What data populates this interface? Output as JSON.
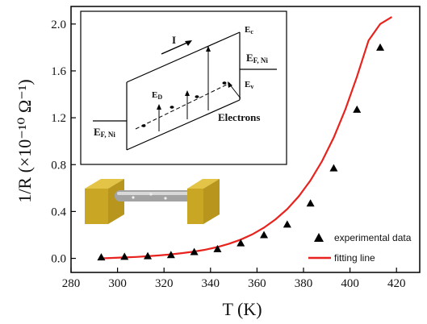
{
  "chart_data": {
    "type": "scatter",
    "title": "",
    "xlabel": "T (K)",
    "ylabel": "1/R (×10⁻¹⁰ Ω⁻¹)",
    "xlim": [
      280,
      430
    ],
    "ylim": [
      -0.12,
      2.15
    ],
    "x_ticks": [
      "280",
      "300",
      "320",
      "340",
      "360",
      "380",
      "400",
      "420"
    ],
    "y_ticks": [
      "0.0",
      "0.4",
      "0.8",
      "1.2",
      "1.6",
      "2.0"
    ],
    "series": [
      {
        "name": "experimental data",
        "marker": "triangle",
        "color": "#000000",
        "x": [
          293,
          303,
          313,
          323,
          333,
          343,
          353,
          363,
          373,
          383,
          393,
          403,
          413
        ],
        "y": [
          0.01,
          0.015,
          0.02,
          0.03,
          0.055,
          0.08,
          0.13,
          0.2,
          0.29,
          0.47,
          0.77,
          1.27,
          1.8
        ]
      },
      {
        "name": "fitting line",
        "style": "line",
        "color": "#e8221c",
        "x": [
          293,
          298,
          303,
          308,
          313,
          318,
          323,
          328,
          333,
          338,
          343,
          348,
          353,
          358,
          363,
          368,
          373,
          378,
          383,
          388,
          393,
          398,
          403,
          408,
          413,
          418
        ],
        "y": [
          0.0,
          0.004,
          0.008,
          0.012,
          0.018,
          0.025,
          0.034,
          0.045,
          0.058,
          0.075,
          0.097,
          0.125,
          0.16,
          0.205,
          0.262,
          0.333,
          0.42,
          0.53,
          0.665,
          0.83,
          1.03,
          1.27,
          1.55,
          1.86,
          2.0,
          2.06
        ]
      }
    ],
    "legend": {
      "position": "bottom-right",
      "entries": [
        "experimental data",
        "fitting line"
      ]
    },
    "grid": false
  },
  "inset": {
    "current_label": "I",
    "ec_label": "E",
    "ec_sub": "c",
    "ev_label": "E",
    "ev_sub": "v",
    "ed_label": "E",
    "ed_sub": "D",
    "ef_right_label": "E",
    "ef_right_sub": "F, Ni",
    "ef_left_label": "E",
    "ef_left_sub": "F, Ni",
    "electrons_label": "Electrons"
  },
  "colors": {
    "fit_line": "#e8221c",
    "marker": "#000000",
    "electrode": "#d4b22c",
    "nanowire": "#a0a0a0"
  }
}
